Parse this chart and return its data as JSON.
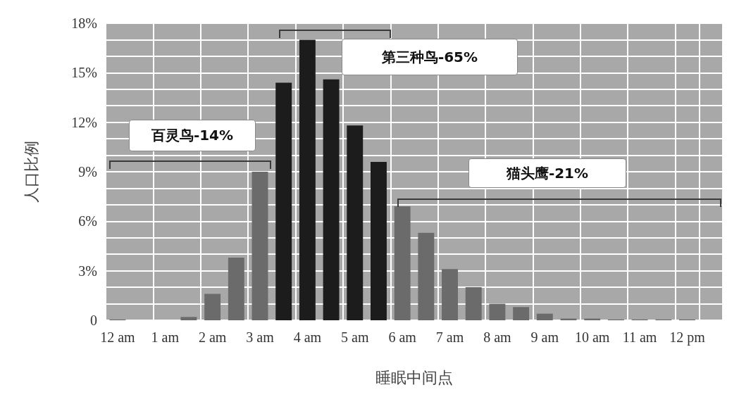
{
  "chart_data": {
    "type": "bar",
    "xlabel": "睡眠中间点",
    "ylabel": "人口比例",
    "categories": [
      "12 am",
      null,
      "1 am",
      null,
      "2 am",
      null,
      "3 am",
      null,
      "4 am",
      null,
      "5 am",
      null,
      "6 am",
      null,
      "7 am",
      null,
      "8 am",
      null,
      "9 am",
      null,
      "10 am",
      null,
      "11 am",
      null,
      "12 pm",
      null
    ],
    "values": [
      0.05,
      0,
      0,
      0.2,
      1.6,
      3.8,
      9.0,
      14.4,
      17.0,
      14.6,
      11.8,
      9.6,
      6.9,
      5.3,
      3.1,
      2.0,
      1.0,
      0.8,
      0.4,
      0.1,
      0.1,
      0.05,
      0.05,
      0.05,
      0.05,
      null
    ],
    "colors": [
      "#6b6b6b",
      "#6b6b6b",
      "#6b6b6b",
      "#6b6b6b",
      "#6b6b6b",
      "#6b6b6b",
      "#6b6b6b",
      "#1c1c1c",
      "#1c1c1c",
      "#1c1c1c",
      "#1c1c1c",
      "#1c1c1c",
      "#6b6b6b",
      "#6b6b6b",
      "#6b6b6b",
      "#6b6b6b",
      "#6b6b6b",
      "#6b6b6b",
      "#6b6b6b",
      "#6b6b6b",
      "#6b6b6b",
      "#6b6b6b",
      "#6b6b6b",
      "#6b6b6b",
      "#6b6b6b",
      "#6b6b6b"
    ],
    "ylim": [
      0,
      18
    ],
    "yticks": [
      0,
      {
        "value": 3,
        "label": "3%"
      },
      {
        "value": 6,
        "label": "6%"
      },
      {
        "value": 9,
        "label": "9%"
      },
      {
        "value": 12,
        "label": "12%"
      },
      {
        "value": 15,
        "label": "15%"
      },
      {
        "value": 18,
        "label": "18%"
      }
    ],
    "grid": true,
    "annotations": [
      "百灵鸟-14%",
      "第三种鸟-65%",
      "猫头鹰-21%"
    ]
  }
}
